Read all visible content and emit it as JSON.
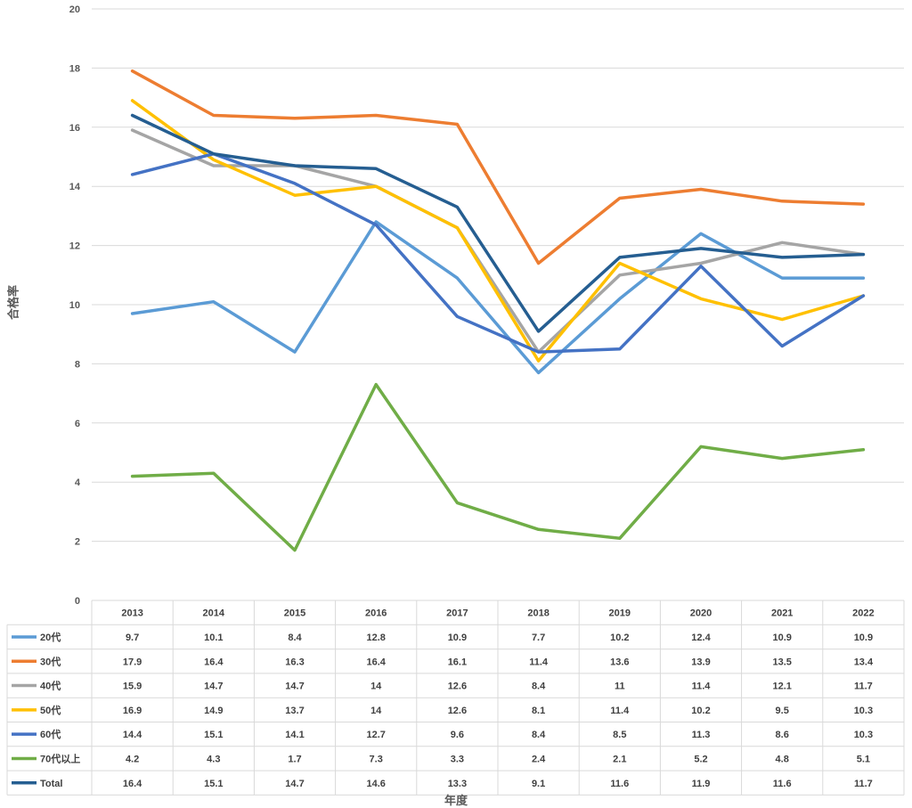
{
  "chart_data": {
    "type": "line",
    "title": "",
    "xlabel": "年度",
    "ylabel": "合格率",
    "ylim": [
      0,
      20
    ],
    "yticks": [
      0,
      2,
      4,
      6,
      8,
      10,
      12,
      14,
      16,
      18,
      20
    ],
    "grid": true,
    "legend": "data-table-below",
    "categories": [
      "2013",
      "2014",
      "2015",
      "2016",
      "2017",
      "2018",
      "2019",
      "2020",
      "2021",
      "2022"
    ],
    "series": [
      {
        "name": "20代",
        "color": "#5B9BD5",
        "values": [
          "9.7",
          "10.1",
          "8.4",
          "12.8",
          "10.9",
          "7.7",
          "10.2",
          "12.4",
          "10.9",
          "10.9"
        ]
      },
      {
        "name": "30代",
        "color": "#ED7D31",
        "values": [
          "17.9",
          "16.4",
          "16.3",
          "16.4",
          "16.1",
          "11.4",
          "13.6",
          "13.9",
          "13.5",
          "13.4"
        ]
      },
      {
        "name": "40代",
        "color": "#A5A5A5",
        "values": [
          "15.9",
          "14.7",
          "14.7",
          "14",
          "12.6",
          "8.4",
          "11",
          "11.4",
          "12.1",
          "11.7"
        ]
      },
      {
        "name": "50代",
        "color": "#FFC000",
        "values": [
          "16.9",
          "14.9",
          "13.7",
          "14",
          "12.6",
          "8.1",
          "11.4",
          "10.2",
          "9.5",
          "10.3"
        ]
      },
      {
        "name": "60代",
        "color": "#4472C4",
        "values": [
          "14.4",
          "15.1",
          "14.1",
          "12.7",
          "9.6",
          "8.4",
          "8.5",
          "11.3",
          "8.6",
          "10.3"
        ]
      },
      {
        "name": "70代以上",
        "color": "#70AD47",
        "values": [
          "4.2",
          "4.3",
          "1.7",
          "7.3",
          "3.3",
          "2.4",
          "2.1",
          "5.2",
          "4.8",
          "5.1"
        ]
      },
      {
        "name": "Total",
        "color": "#255E91",
        "values": [
          "16.4",
          "15.1",
          "14.7",
          "14.6",
          "13.3",
          "9.1",
          "11.6",
          "11.9",
          "11.6",
          "11.7"
        ]
      }
    ]
  }
}
